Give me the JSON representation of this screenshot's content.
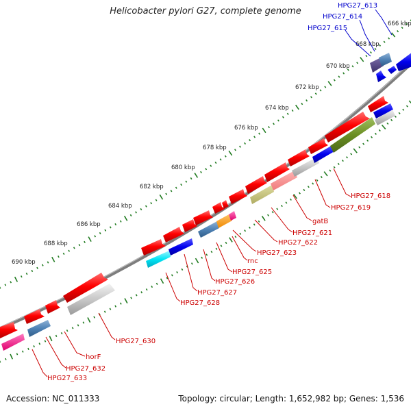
{
  "title": "Helicobacter pylori G27, complete genome",
  "footer": {
    "accession": "Accession: NC_011333",
    "summary": "Topology: circular; Length: 1,652,982 bp; Genes: 1,536"
  },
  "colors": {
    "backbone": "#8a8a8a",
    "ticks": "#1f7a1f",
    "label_red": "#cc0000",
    "label_blue": "#0000cc"
  },
  "tick_labels": [
    "666 kbp",
    "668 kbp",
    "670 kbp",
    "672 kbp",
    "674 kbp",
    "676 kbp",
    "678 kbp",
    "680 kbp",
    "682 kbp",
    "684 kbp",
    "686 kbp",
    "688 kbp",
    "690 kbp"
  ],
  "gene_labels": [
    {
      "text": "HPG27_613",
      "color": "#0000cc"
    },
    {
      "text": "HPG27_614",
      "color": "#0000cc"
    },
    {
      "text": "HPG27_615",
      "color": "#0000cc"
    },
    {
      "text": "HPG27_618",
      "color": "#cc0000"
    },
    {
      "text": "HPG27_619",
      "color": "#cc0000"
    },
    {
      "text": "gatB",
      "color": "#cc0000"
    },
    {
      "text": "HPG27_621",
      "color": "#cc0000"
    },
    {
      "text": "HPG27_622",
      "color": "#cc0000"
    },
    {
      "text": "HPG27_623",
      "color": "#cc0000"
    },
    {
      "text": "rnc",
      "color": "#cc0000"
    },
    {
      "text": "HPG27_625",
      "color": "#cc0000"
    },
    {
      "text": "HPG27_626",
      "color": "#cc0000"
    },
    {
      "text": "HPG27_627",
      "color": "#cc0000"
    },
    {
      "text": "HPG27_628",
      "color": "#cc0000"
    },
    {
      "text": "HPG27_630",
      "color": "#cc0000"
    },
    {
      "text": "horF",
      "color": "#cc0000"
    },
    {
      "text": "HPG27_632",
      "color": "#cc0000"
    },
    {
      "text": "HPG27_633",
      "color": "#cc0000"
    }
  ]
}
